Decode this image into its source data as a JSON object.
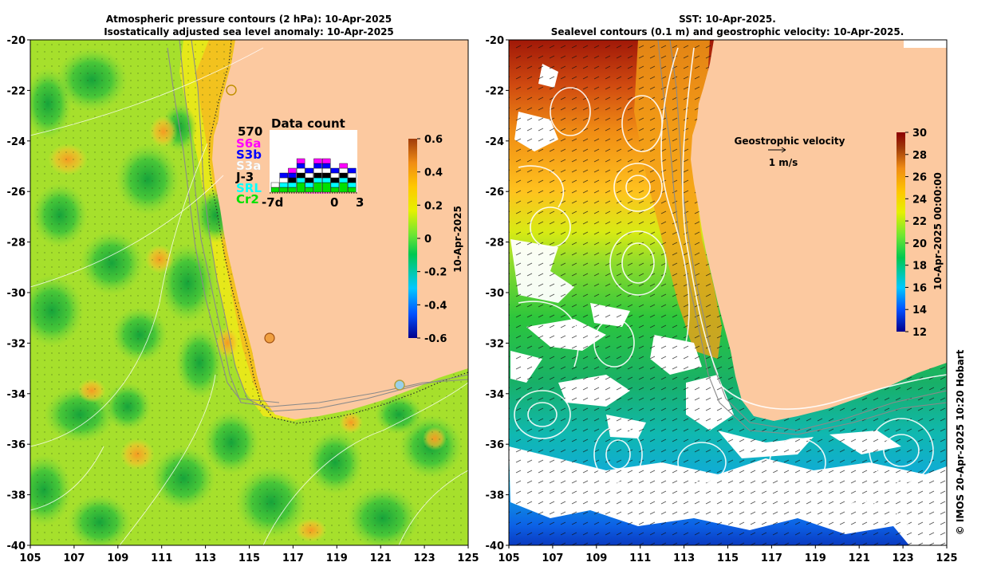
{
  "left_panel": {
    "title_line1": "Atmospheric pressure contours (2 hPa): 10-Apr-2025",
    "title_line2": "Isostatically adjusted sea level anomaly: 10-Apr-2025",
    "colorbar": {
      "label": "10-Apr-2025",
      "min": -0.6,
      "max": 0.6,
      "ticks": [
        "0.6",
        "0.4",
        "0.2",
        "0",
        "-0.2",
        "-0.4",
        "-0.6"
      ],
      "colors": [
        "#00008b",
        "#0050ff",
        "#00c8ff",
        "#00c850",
        "#6ee632",
        "#e6f000",
        "#ffc800",
        "#f08c14",
        "#a03c0a"
      ]
    },
    "inset": {
      "count": "570",
      "title": "Data count",
      "missions": [
        {
          "label": "S6a",
          "color": "#ff00ff"
        },
        {
          "label": "S3b",
          "color": "#0000ff"
        },
        {
          "label": "S3a",
          "color": "#ffffff"
        },
        {
          "label": "J-3",
          "color": "#000000"
        },
        {
          "label": "SRL",
          "color": "#00ffff"
        },
        {
          "label": "Cr2",
          "color": "#00e000"
        }
      ],
      "x_labels": [
        "-7d",
        "0",
        "3"
      ]
    }
  },
  "right_panel": {
    "title_line1": "SST: 10-Apr-2025.",
    "title_line2": "Sealevel contours (0.1 m) and geostrophic velocity: 10-Apr-2025.",
    "legend_title": "Geostrophic velocity",
    "legend_scale": "1 m/s",
    "colorbar": {
      "label": "10-Apr-2025 00:00:00",
      "min": 12,
      "max": 30,
      "ticks": [
        "30",
        "28",
        "26",
        "24",
        "22",
        "20",
        "18",
        "16",
        "14",
        "12"
      ],
      "colors": [
        "#00008b",
        "#0050ff",
        "#00c8ff",
        "#00c850",
        "#6ee632",
        "#e6f000",
        "#ffc800",
        "#f08c14",
        "#a03c0a",
        "#8b0000"
      ]
    }
  },
  "axes": {
    "x_ticks": [
      "105",
      "107",
      "109",
      "111",
      "113",
      "115",
      "117",
      "119",
      "121",
      "123",
      "125"
    ],
    "y_ticks": [
      "-20",
      "-22",
      "-24",
      "-26",
      "-28",
      "-30",
      "-32",
      "-34",
      "-36",
      "-38",
      "-40"
    ]
  },
  "credit": "© IMOS 20-Apr-2025 10:20 Hobart",
  "colors": {
    "land": "#fcc9a0",
    "cloud": "#ffffff",
    "contour": "#ffffff",
    "bathymetry": "#8a8a8a"
  }
}
